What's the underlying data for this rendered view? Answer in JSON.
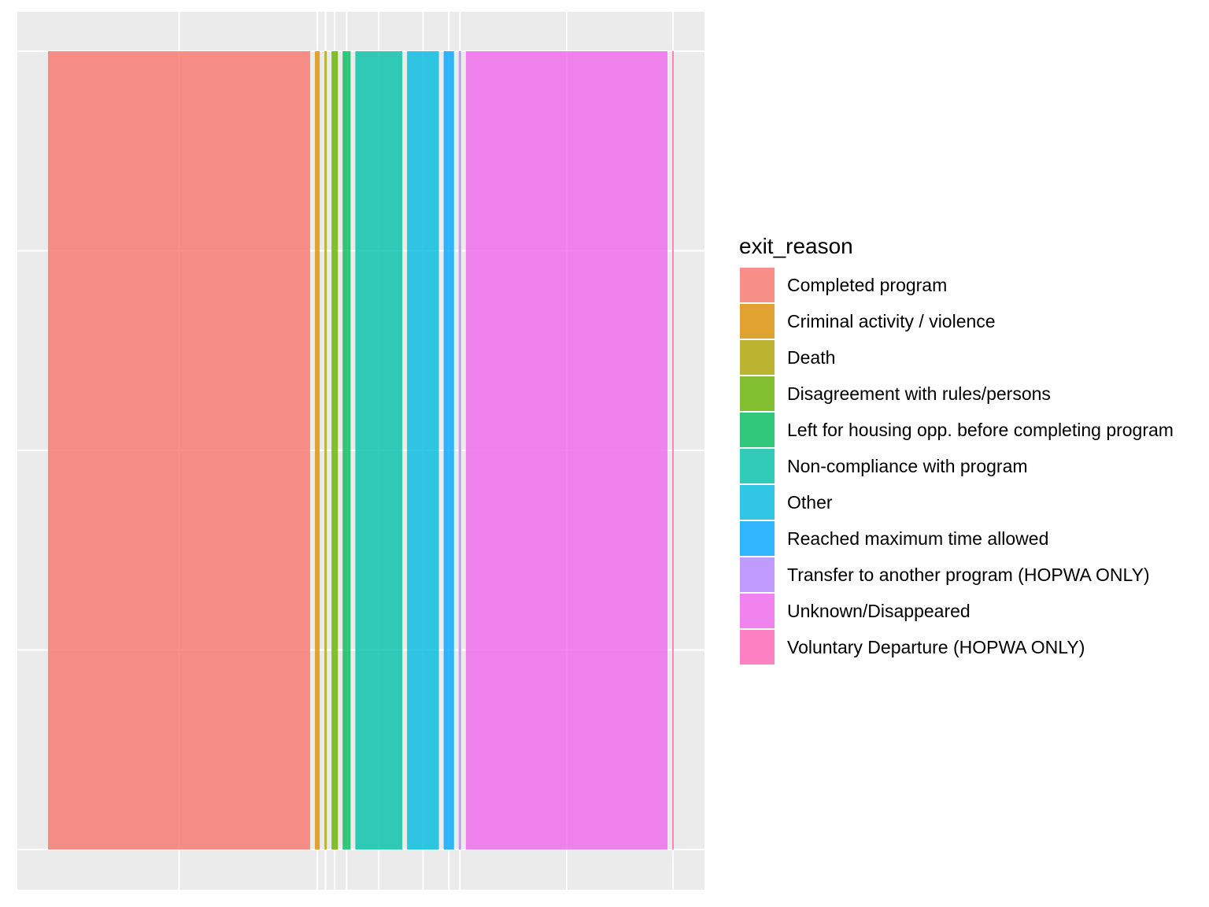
{
  "chart_data": {
    "type": "bar",
    "variant": "proportional-width stacked columns (spine/marimekko style)",
    "xlabel": "",
    "ylabel": "",
    "ylim": [
      0,
      1
    ],
    "axis_text_shown": false,
    "grid": true,
    "legend": {
      "title": "exit_reason",
      "position": "right"
    },
    "categories": [
      "Completed program",
      "Criminal activity / violence",
      "Death",
      "Disagreement with rules/persons",
      "Left for housing opp. before completing program",
      "Non-compliance with program",
      "Other",
      "Reached maximum time allowed",
      "Transfer to another program (HOPWA ONLY)",
      "Unknown/Disappeared",
      "Voluntary Departure (HOPWA ONLY)"
    ],
    "colors": [
      "#F8766D",
      "#DB8E00",
      "#AEA200",
      "#64B200",
      "#00BD5C",
      "#00C1A7",
      "#00BADE",
      "#00A6FF",
      "#B385FF",
      "#EF67EB",
      "#FF63B6"
    ],
    "values": [
      329,
      6,
      3,
      8,
      10,
      59,
      40,
      13,
      3,
      253,
      2
    ],
    "value_unit": "relative share (bar width), estimated",
    "bar_height": 1
  }
}
